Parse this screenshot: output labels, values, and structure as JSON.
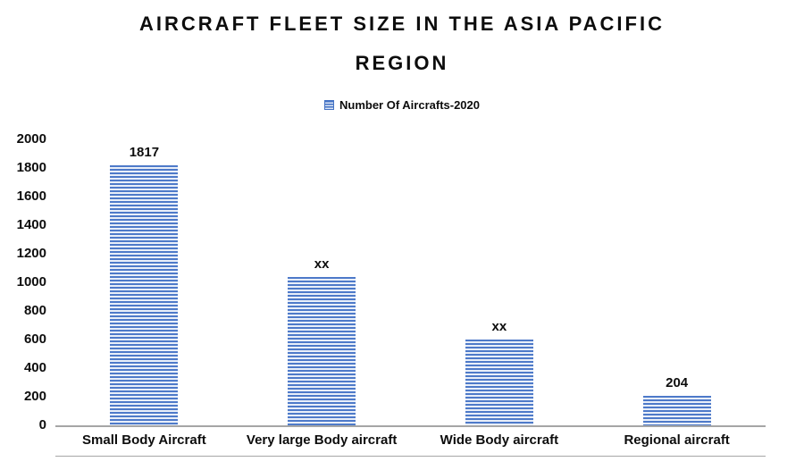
{
  "chart_data": {
    "type": "bar",
    "title_line1": "AIRCRAFT FLEET SIZE IN THE ASIA PACIFIC",
    "title_line2": "REGION",
    "legend": "Number Of Aircrafts-2020",
    "categories": [
      "Small Body Aircraft",
      "Very large Body aircraft",
      "Wide Body aircraft",
      "Regional aircraft"
    ],
    "values": [
      1817,
      1040,
      600,
      204
    ],
    "data_labels": [
      "1817",
      "xx",
      "xx",
      "204"
    ],
    "xlabel": "",
    "ylabel": "",
    "ylim": [
      0,
      2000
    ],
    "yticks": [
      0,
      200,
      400,
      600,
      800,
      1000,
      1200,
      1400,
      1600,
      1800,
      2000
    ],
    "grid": false,
    "legend_position": "top",
    "bar_color": "#4472c4",
    "bar_stripe_light": "#e9eff9",
    "axis_color": "#a6a6a6"
  }
}
